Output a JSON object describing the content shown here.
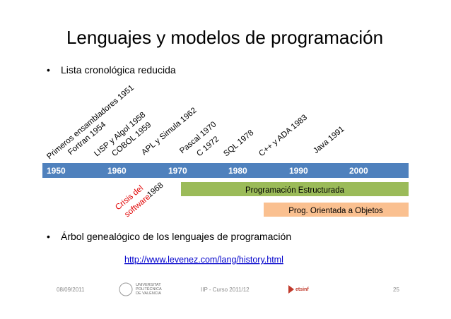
{
  "header": {
    "title": "Lenguajes y modelos de programación"
  },
  "bullets": [
    "Lista cronológica reducida",
    "Árbol genealógico de los lenguajes de programación"
  ],
  "languages": [
    "Primeros ensambladores  1951",
    "Fortran  1954",
    "LISP y Algol  1958",
    "COBOL  1959",
    "APL y Simula 1962",
    "Pascal  1970",
    "C  1972",
    "SQL  1978",
    "C++ y ADA  1983",
    "Java  1991"
  ],
  "decades": [
    "1950",
    "1960",
    "1970",
    "1980",
    "1990",
    "2000"
  ],
  "crisis": {
    "line1": "Crisis del",
    "line2": "software",
    "year": "1968"
  },
  "paradigms": [
    "Programación Estructurada",
    "Prog. Orientada a Objetos"
  ],
  "link": "http://www.levenez.com/lang/history.html",
  "footer": {
    "date": "08/09/2011",
    "course": "IIP - Curso 2011/12",
    "page": "25",
    "university": [
      "UNIVERSITAT",
      "POLITÈCNICA",
      "DE VALÈNCIA"
    ],
    "school": "etsinf"
  }
}
